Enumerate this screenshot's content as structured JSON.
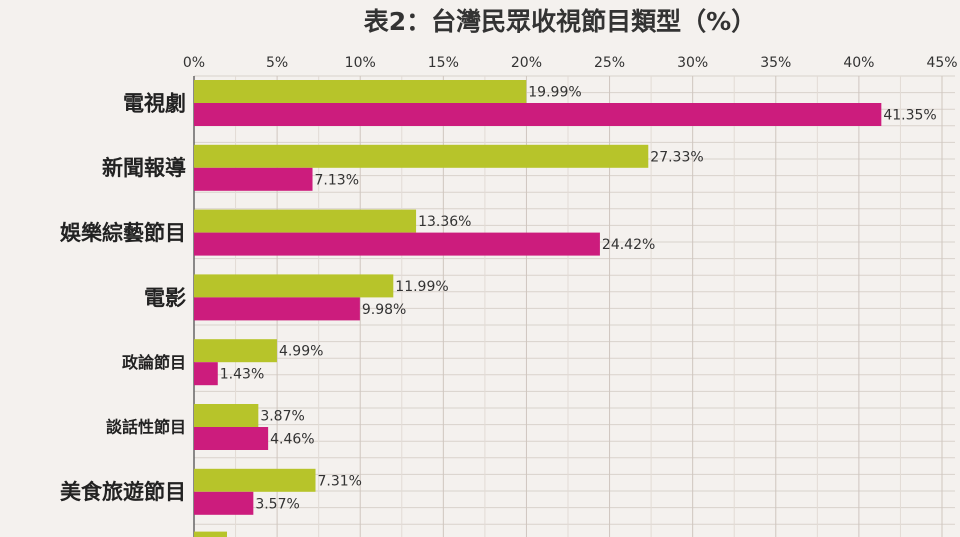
{
  "chart_data": {
    "type": "bar",
    "orientation": "horizontal",
    "title": "表2：台灣民眾收視節目類型（%）",
    "x_ticks": [
      "0%",
      "5%",
      "10%",
      "15%",
      "20%",
      "25%",
      "30%",
      "35%",
      "40%",
      "45%"
    ],
    "xlim": [
      0,
      45
    ],
    "grid": true,
    "categories": [
      "電視劇",
      "新聞報導",
      "娛樂綜藝節目",
      "電影",
      "政論節目",
      "談話性節目",
      "美食旅遊節目"
    ],
    "series": [
      {
        "color": "#b7c42a",
        "values": [
          19.99,
          27.33,
          13.36,
          11.99,
          4.99,
          3.87,
          7.31
        ]
      },
      {
        "color": "#cc1c7d",
        "values": [
          41.35,
          7.13,
          24.42,
          9.98,
          1.43,
          4.46,
          3.57
        ]
      }
    ],
    "data_labels": [
      [
        "19.99%",
        "27.33%",
        "13.36%",
        "11.99%",
        "4.99%",
        "3.87%",
        "7.31%"
      ],
      [
        "41.35%",
        "7.13%",
        "24.42%",
        "9.98%",
        "1.43%",
        "4.46%",
        "3.57%"
      ]
    ]
  }
}
